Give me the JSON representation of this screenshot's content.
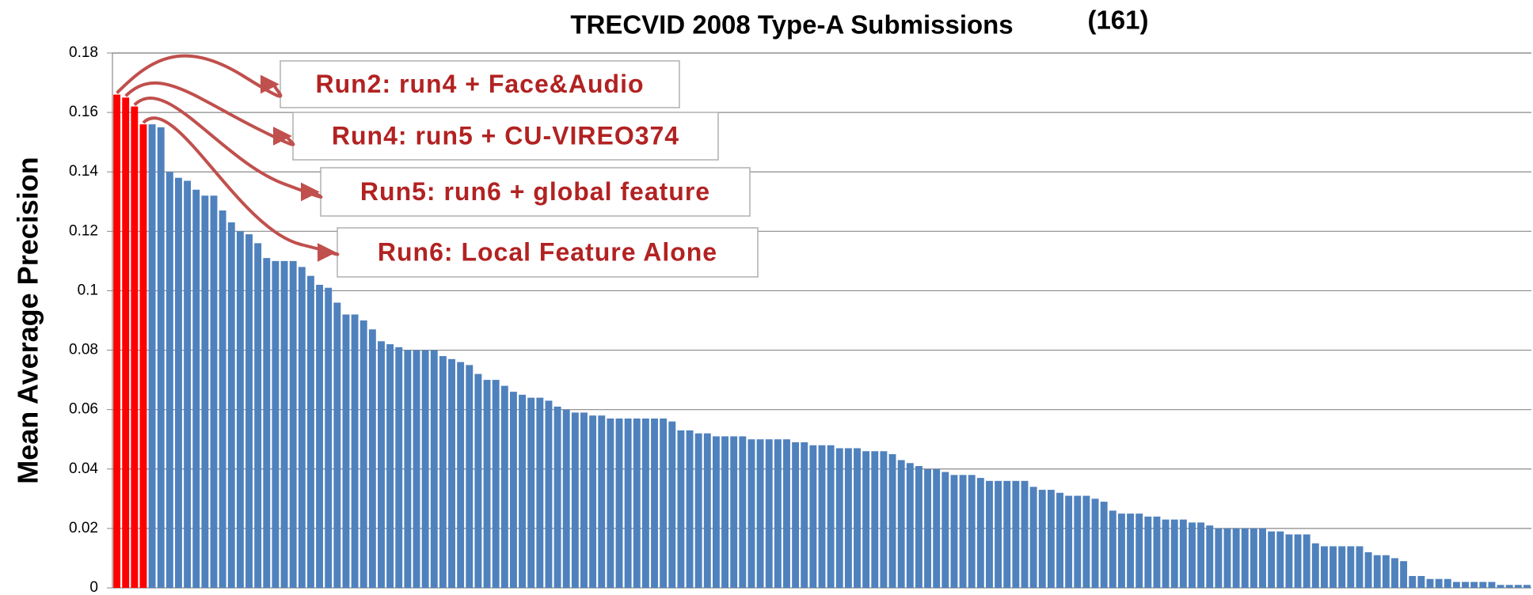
{
  "chart_data": {
    "type": "bar",
    "title": "TRECVID 2008 Type-A Submissions",
    "title_count": "(161)",
    "y_label": "Mean Average Precision",
    "ylim": [
      0,
      0.18
    ],
    "yticks": [
      0,
      0.02,
      0.04,
      0.06,
      0.08,
      0.1,
      0.12,
      0.14,
      0.16,
      0.18
    ],
    "grid": true,
    "annotations": [
      "Run2: run4 + Face&Audio",
      "Run4: run5 + CU-VIREO374",
      "Run5: run6 + global feature",
      "Run6: Local Feature Alone"
    ],
    "values": [
      0.166,
      0.165,
      0.162,
      0.156,
      0.156,
      0.155,
      0.14,
      0.138,
      0.137,
      0.134,
      0.132,
      0.132,
      0.127,
      0.123,
      0.12,
      0.119,
      0.116,
      0.111,
      0.11,
      0.11,
      0.11,
      0.108,
      0.105,
      0.102,
      0.101,
      0.096,
      0.092,
      0.092,
      0.09,
      0.087,
      0.083,
      0.082,
      0.081,
      0.08,
      0.08,
      0.08,
      0.08,
      0.078,
      0.077,
      0.076,
      0.075,
      0.072,
      0.07,
      0.07,
      0.068,
      0.066,
      0.065,
      0.064,
      0.064,
      0.063,
      0.061,
      0.06,
      0.059,
      0.059,
      0.058,
      0.058,
      0.057,
      0.057,
      0.057,
      0.057,
      0.057,
      0.057,
      0.057,
      0.056,
      0.053,
      0.053,
      0.052,
      0.052,
      0.051,
      0.051,
      0.051,
      0.051,
      0.05,
      0.05,
      0.05,
      0.05,
      0.05,
      0.049,
      0.049,
      0.048,
      0.048,
      0.048,
      0.047,
      0.047,
      0.047,
      0.046,
      0.046,
      0.046,
      0.045,
      0.043,
      0.042,
      0.041,
      0.04,
      0.04,
      0.039,
      0.038,
      0.038,
      0.038,
      0.037,
      0.036,
      0.036,
      0.036,
      0.036,
      0.036,
      0.034,
      0.033,
      0.033,
      0.032,
      0.031,
      0.031,
      0.031,
      0.03,
      0.029,
      0.026,
      0.025,
      0.025,
      0.025,
      0.024,
      0.024,
      0.023,
      0.023,
      0.023,
      0.022,
      0.022,
      0.021,
      0.02,
      0.02,
      0.02,
      0.02,
      0.02,
      0.02,
      0.019,
      0.019,
      0.018,
      0.018,
      0.018,
      0.015,
      0.014,
      0.014,
      0.014,
      0.014,
      0.014,
      0.012,
      0.011,
      0.011,
      0.01,
      0.009,
      0.004,
      0.004,
      0.003,
      0.003,
      0.003,
      0.002,
      0.002,
      0.002,
      0.002,
      0.002,
      0.001,
      0.001,
      0.001,
      0.001
    ],
    "color": "#4f81bd",
    "highlight_color": "#ff0000",
    "highlighted": [
      0,
      1,
      2,
      3
    ]
  }
}
